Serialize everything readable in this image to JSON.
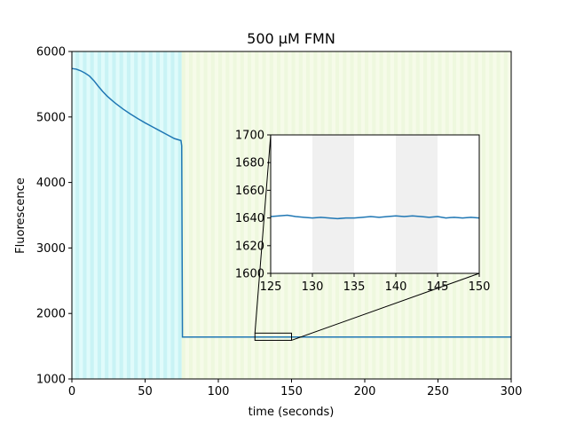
{
  "chart_data": [
    {
      "id": "main",
      "type": "line",
      "title": "500 μM FMN",
      "xlabel": "time (seconds)",
      "ylabel": "Fluorescence",
      "xlim": [
        0,
        300
      ],
      "ylim": [
        1000,
        6000
      ],
      "xticks": [
        0,
        50,
        100,
        150,
        200,
        250,
        300
      ],
      "yticks": [
        1000,
        2000,
        3000,
        4000,
        5000,
        6000
      ],
      "grid": false,
      "background_bands": [
        {
          "range": [
            0,
            75
          ],
          "color": "#e0fbfb",
          "stripe_color": "#c9f3f5",
          "stripe_period": 5
        },
        {
          "range": [
            75,
            300
          ],
          "color": "#eef8de",
          "stripe_color": "#f6fbe9",
          "stripe_period": 5
        }
      ],
      "line_color": "#1f77b4",
      "series": [
        {
          "x": [
            0,
            3,
            6,
            9,
            12,
            15,
            18,
            21,
            24,
            27,
            30,
            35,
            40,
            45,
            50,
            55,
            60,
            65,
            70,
            74.5,
            75,
            75.5,
            80,
            100,
            150,
            200,
            250,
            300
          ],
          "y": [
            5740,
            5730,
            5705,
            5670,
            5625,
            5555,
            5470,
            5390,
            5320,
            5260,
            5205,
            5120,
            5045,
            4975,
            4910,
            4850,
            4790,
            4730,
            4670,
            4640,
            4560,
            1640,
            1641,
            1640,
            1640,
            1641,
            1640,
            1640
          ]
        }
      ],
      "zoom_box": {
        "x": [
          125,
          150
        ],
        "y": [
          1590,
          1700
        ]
      }
    },
    {
      "id": "inset",
      "type": "line",
      "xlim": [
        125,
        150
      ],
      "ylim": [
        1600,
        1700
      ],
      "xticks": [
        125,
        130,
        135,
        140,
        145,
        150
      ],
      "yticks": [
        1600,
        1620,
        1640,
        1660,
        1680,
        1700
      ],
      "grid": false,
      "shaded_bands": [
        [
          130,
          135
        ],
        [
          140,
          145
        ]
      ],
      "band_color": "#f0f0f0",
      "line_color": "#1f77b4",
      "series": [
        {
          "x": [
            125,
            126,
            127,
            128,
            129,
            130,
            131,
            132,
            133,
            134,
            135,
            136,
            137,
            138,
            139,
            140,
            141,
            142,
            143,
            144,
            145,
            146,
            147,
            148,
            149,
            150
          ],
          "y": [
            1641,
            1641.5,
            1642,
            1641,
            1640.5,
            1640,
            1640.5,
            1640,
            1639.5,
            1640,
            1640,
            1640.5,
            1641,
            1640.5,
            1641,
            1641.5,
            1641,
            1641.5,
            1641,
            1640.5,
            1641,
            1640,
            1640.5,
            1640,
            1640.5,
            1640
          ]
        }
      ]
    }
  ]
}
